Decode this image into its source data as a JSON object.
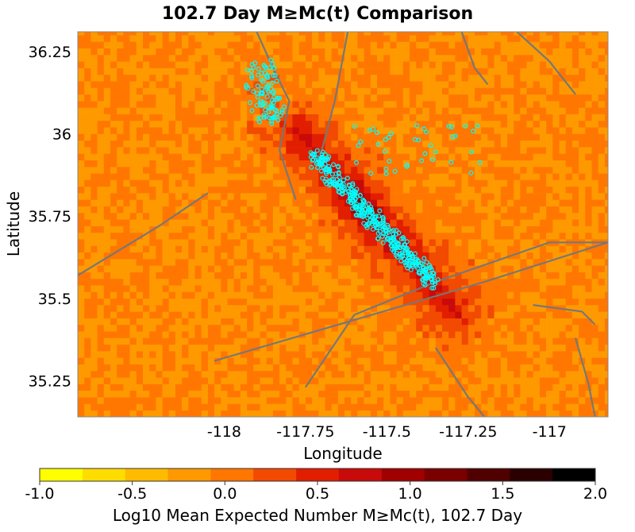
{
  "chart_data": {
    "type": "heatmap",
    "title": "102.7 Day M≥Mc(t) Comparison",
    "xlabel": "Longitude",
    "ylabel": "Latitude",
    "xlim": [
      -118.45,
      -116.82
    ],
    "ylim": [
      35.14,
      36.31
    ],
    "xticks": [
      -118,
      -117.75,
      -117.5,
      -117.25,
      -117
    ],
    "xtick_labels": [
      "-118",
      "-117.75",
      "-117.5",
      "-117.25",
      "-117"
    ],
    "yticks": [
      35.25,
      35.5,
      35.75,
      36,
      36.25
    ],
    "ytick_labels": [
      "35.25",
      "35.5",
      "35.75",
      "36",
      "36.25"
    ],
    "grid": true,
    "cell_size_deg": 0.02,
    "colorbar": {
      "label": "Log10 Mean Expected Number M≥Mc(t), 102.7 Day",
      "range": [
        -1.0,
        2.0
      ],
      "ticks": [
        -1.0,
        -0.5,
        0.0,
        0.5,
        1.0,
        1.5,
        2.0
      ],
      "tick_labels": [
        "-1.0",
        "-0.5",
        "0.0",
        "0.5",
        "1.0",
        "1.5",
        "2.0"
      ],
      "colors": [
        "#ffff00",
        "#ffdd00",
        "#ffbb00",
        "#ff9900",
        "#ff7700",
        "#f24a00",
        "#e21e00",
        "#c80a0a",
        "#a00000",
        "#7a0000",
        "#500000",
        "#2a0000",
        "#000000"
      ]
    },
    "colormap_note": "hot yellow-to-black, 13 discrete steps",
    "forecast_field": {
      "description": "gridded log10 expected counts concentrated along NW-SE rupture trend",
      "core_axis": [
        {
          "lon": -117.7,
          "lat": 35.92
        },
        {
          "lon": -117.37,
          "lat": 35.55
        }
      ],
      "peak_value": 1.5,
      "peak_location": {
        "lon": -117.58,
        "lat": 35.78
      }
    },
    "observed_events": {
      "marker": "circle",
      "color": "#00ffff",
      "clusters": [
        {
          "name_hint": "",
          "lon_center": -117.88,
          "lat_center": 36.15,
          "count": 90
        },
        {
          "lon_center": -117.58,
          "lat_center": 35.75,
          "count": 380
        },
        {
          "lon_center": -117.4,
          "lat_center": 35.95,
          "count": 40
        }
      ]
    },
    "fault_lines": [
      [
        [
          -118.45,
          35.57
        ],
        [
          -118.2,
          35.72
        ],
        [
          -118.05,
          35.82
        ]
      ],
      [
        [
          -117.75,
          35.23
        ],
        [
          -117.6,
          35.45
        ],
        [
          -117.35,
          35.55
        ],
        [
          -117.0,
          35.67
        ],
        [
          -116.82,
          35.67
        ]
      ],
      [
        [
          -118.03,
          35.31
        ],
        [
          -117.65,
          35.42
        ],
        [
          -117.2,
          35.55
        ],
        [
          -116.82,
          35.67
        ]
      ],
      [
        [
          -117.9,
          36.31
        ],
        [
          -117.85,
          36.2
        ],
        [
          -117.8,
          36.1
        ],
        [
          -117.83,
          35.95
        ],
        [
          -117.78,
          35.8
        ]
      ],
      [
        [
          -117.62,
          36.31
        ],
        [
          -117.66,
          36.1
        ],
        [
          -117.7,
          35.95
        ]
      ],
      [
        [
          -117.27,
          36.31
        ],
        [
          -117.23,
          36.2
        ],
        [
          -117.19,
          36.15
        ]
      ],
      [
        [
          -117.1,
          36.31
        ],
        [
          -117.0,
          36.22
        ],
        [
          -116.92,
          36.12
        ]
      ],
      [
        [
          -117.35,
          35.35
        ],
        [
          -117.25,
          35.2
        ],
        [
          -117.2,
          35.14
        ]
      ],
      [
        [
          -116.92,
          35.38
        ],
        [
          -116.88,
          35.24
        ],
        [
          -116.86,
          35.14
        ]
      ],
      [
        [
          -117.05,
          35.48
        ],
        [
          -116.9,
          35.46
        ],
        [
          -116.86,
          35.42
        ]
      ]
    ]
  }
}
